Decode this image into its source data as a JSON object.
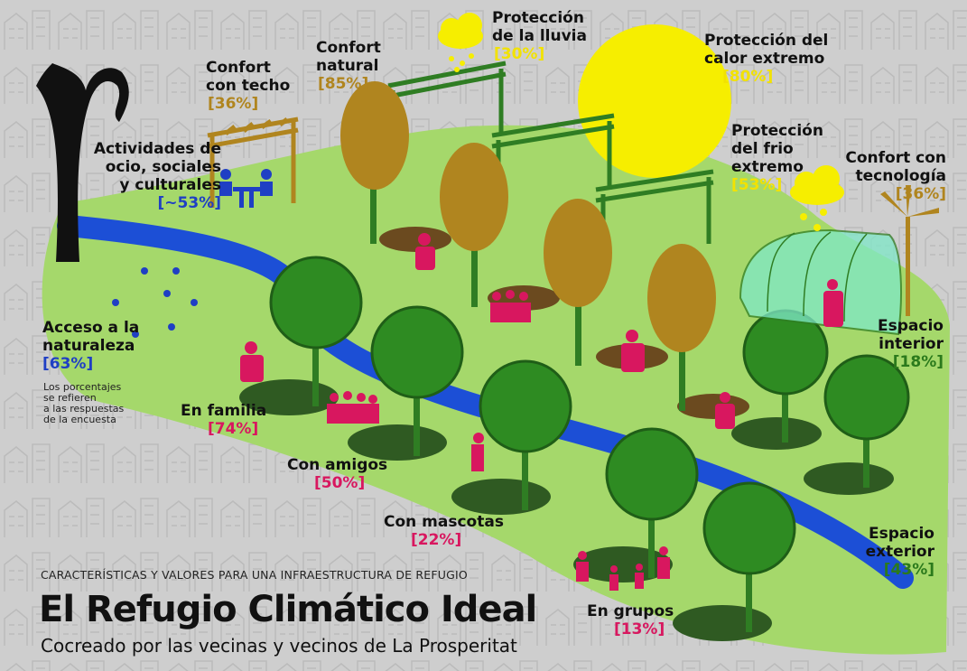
{
  "header": {
    "kicker": "CARACTERÍSTICAS Y VALORES PARA UNA INFRAESTRUCTURA DE REFUGIO",
    "title": "El Refugio Climático Ideal",
    "subtitle": "Cocreado por las vecinas y vecinos de La Prosperitat"
  },
  "note": [
    "Los porcentajes",
    "se refieren",
    "a las respuestas",
    "de la encuesta"
  ],
  "features": [
    {
      "label": [
        "Confort",
        "con techo"
      ],
      "value": "[36%]"
    },
    {
      "label": [
        "Confort",
        "natural"
      ],
      "value": "[85%]"
    },
    {
      "label": [
        "Protección",
        "de la lluvia"
      ],
      "value": "[30%]"
    },
    {
      "label": [
        "Protección del",
        "calor extremo"
      ],
      "value": "[80%]"
    },
    {
      "label": [
        "Protección",
        "del frio",
        "extremo"
      ],
      "value": "[53%]"
    },
    {
      "label": [
        "Confort con",
        "tecnología"
      ],
      "value": "[36%]"
    },
    {
      "label": [
        "Actividades de",
        "ocio, sociales",
        "y culturales"
      ],
      "value": "[~53%]"
    },
    {
      "label": [
        "Acceso a la",
        "naturaleza"
      ],
      "value": "[63%]"
    },
    {
      "label": [
        "En familia"
      ],
      "value": "[74%]"
    },
    {
      "label": [
        "Con amigos"
      ],
      "value": "[50%]"
    },
    {
      "label": [
        "Con mascotas"
      ],
      "value": "[22%]"
    },
    {
      "label": [
        "En grupos"
      ],
      "value": "[13%]"
    },
    {
      "label": [
        "Espacio",
        "interior"
      ],
      "value": "[18%]"
    },
    {
      "label": [
        "Espacio",
        "exterior"
      ],
      "value": "[43%]"
    }
  ]
}
